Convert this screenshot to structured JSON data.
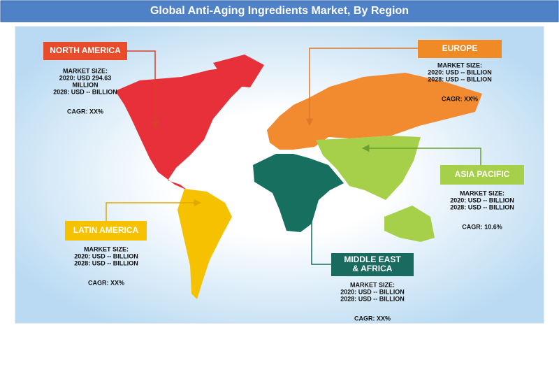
{
  "title": "Global Anti-Aging Ingredients Market, By Region",
  "regions": [
    {
      "name": [
        "NORTH AMERICA"
      ],
      "lines": [
        "MARKET SIZE:",
        "2020: USD 294.63",
        "MILLION",
        "2028: USD -- BILLION"
      ],
      "cagr": "CAGR: XX%"
    },
    {
      "name": [
        "EUROPE"
      ],
      "lines": [
        "MARKET SIZE:",
        "2020: USD -- BILLION",
        "2028: USD -- BILLION"
      ],
      "cagr": "CAGR: XX%"
    },
    {
      "name": [
        "ASIA PACIFIC"
      ],
      "lines": [
        "MARKET SIZE:",
        "2020: USD -- BILLION",
        "2028: USD -- BILLION"
      ],
      "cagr": "CAGR: 10.6%"
    },
    {
      "name": [
        "LATIN AMERICA"
      ],
      "lines": [
        "MARKET SIZE:",
        "2020: USD -- BILLION",
        "2028: USD -- BILLION"
      ],
      "cagr": "CAGR: XX%"
    },
    {
      "name": [
        "MIDDLE EAST",
        "& AFRICA"
      ],
      "lines": [
        "MARKET SIZE:",
        "2020: USD -- BILLION",
        "2028: USD -- BILLION"
      ],
      "cagr": "CAGR: XX%"
    }
  ]
}
